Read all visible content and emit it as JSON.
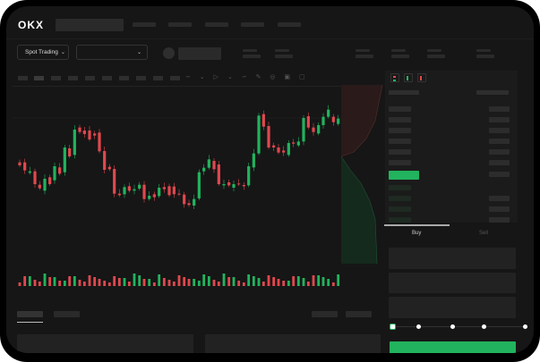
{
  "header": {
    "logo": "OKX"
  },
  "toolbar": {
    "market_select": "Spot Trading",
    "pair_select": ""
  },
  "trade": {
    "tabs": [
      {
        "label": "Buy",
        "active": true
      },
      {
        "label": "Sell",
        "active": false
      }
    ],
    "slider_percent": 0
  },
  "colors": {
    "up": "#22b35e",
    "down": "#e0484e",
    "background": "#161616"
  }
}
